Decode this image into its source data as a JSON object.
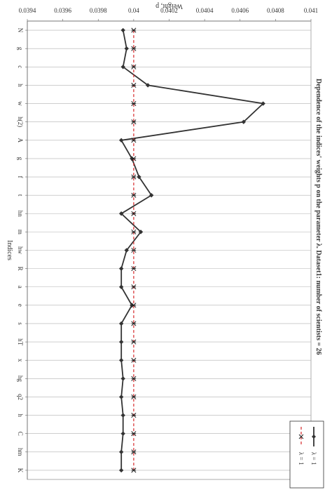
{
  "chart_data": {
    "type": "line",
    "title": "Dependence of the indices' weights p on the parameter λ. Dataset1: number of scientists = 26",
    "xlabel": "Indices",
    "ylabel": "Weight, p",
    "categories": [
      "N",
      "g",
      "c",
      "h",
      "w",
      "h(2)",
      "A",
      "g",
      "f",
      "t",
      "hn",
      "m",
      "hw",
      "R",
      "a",
      "e",
      "s",
      "hT",
      "x",
      "hg",
      "q2",
      "h",
      "C",
      "hm",
      "K"
    ],
    "ylim": [
      0.0394,
      0.041
    ],
    "yticks": [
      0.0394,
      0.0396,
      0.0398,
      0.04,
      0.0402,
      0.0404,
      0.0406,
      0.0408,
      0.041
    ],
    "ytick_labels": [
      "0.0394",
      "0.0396",
      "0.0398",
      "0.04",
      "0.0402",
      "0.0404",
      "0.0406",
      "0.0408",
      "0.041"
    ],
    "grid": "vertical lines at each category",
    "legend_position": "top-left (rotated)",
    "series": [
      {
        "name": "λ = 1",
        "color": "#333333",
        "marker": "diamond",
        "line_style": "solid",
        "values": [
          0.03994,
          0.03996,
          0.03994,
          0.04008,
          0.04073,
          0.04062,
          0.03993,
          0.03999,
          0.04003,
          0.0401,
          0.03993,
          0.04004,
          0.03996,
          0.03993,
          0.03993,
          0.03999,
          0.03993,
          0.03993,
          0.03993,
          0.03994,
          0.03993,
          0.03994,
          0.03994,
          0.03993,
          0.03993
        ]
      },
      {
        "name": "λ = 1",
        "color": "#d62728",
        "marker": "asterisk",
        "line_style": "dashed",
        "values": [
          0.04,
          0.04,
          0.04,
          0.04,
          0.04,
          0.04,
          0.04,
          0.04,
          0.04,
          0.04,
          0.04,
          0.04,
          0.04,
          0.04,
          0.04,
          0.04,
          0.04,
          0.04,
          0.04,
          0.04,
          0.04,
          0.04,
          0.04,
          0.04,
          0.04
        ]
      }
    ]
  }
}
